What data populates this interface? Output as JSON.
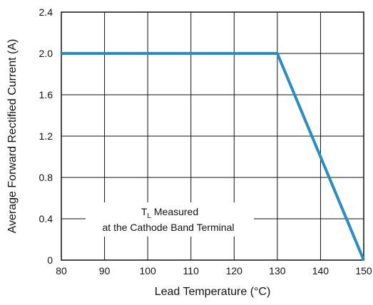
{
  "chart_data": {
    "type": "line",
    "title": "",
    "xlabel": "Lead Temperature (°C)",
    "ylabel": "Average Forward Rectified Current (A)",
    "xlim": [
      80,
      150
    ],
    "ylim": [
      0,
      2.4
    ],
    "grid": true,
    "x_ticks": [
      "80",
      "90",
      "100",
      "110",
      "120",
      "130",
      "140",
      "150"
    ],
    "y_ticks": [
      "0",
      "0.4",
      "0.8",
      "1.2",
      "1.6",
      "2.0",
      "2.4"
    ],
    "series": [
      {
        "x": [
          80,
          130,
          150
        ],
        "y": [
          2.0,
          2.0,
          0
        ],
        "color": "#2b8cc4"
      }
    ],
    "annotation": {
      "line1_main": "T",
      "line1_sub": "L",
      "line1_rest": " Measured",
      "line2": "at the Cathode Band Terminal"
    }
  }
}
